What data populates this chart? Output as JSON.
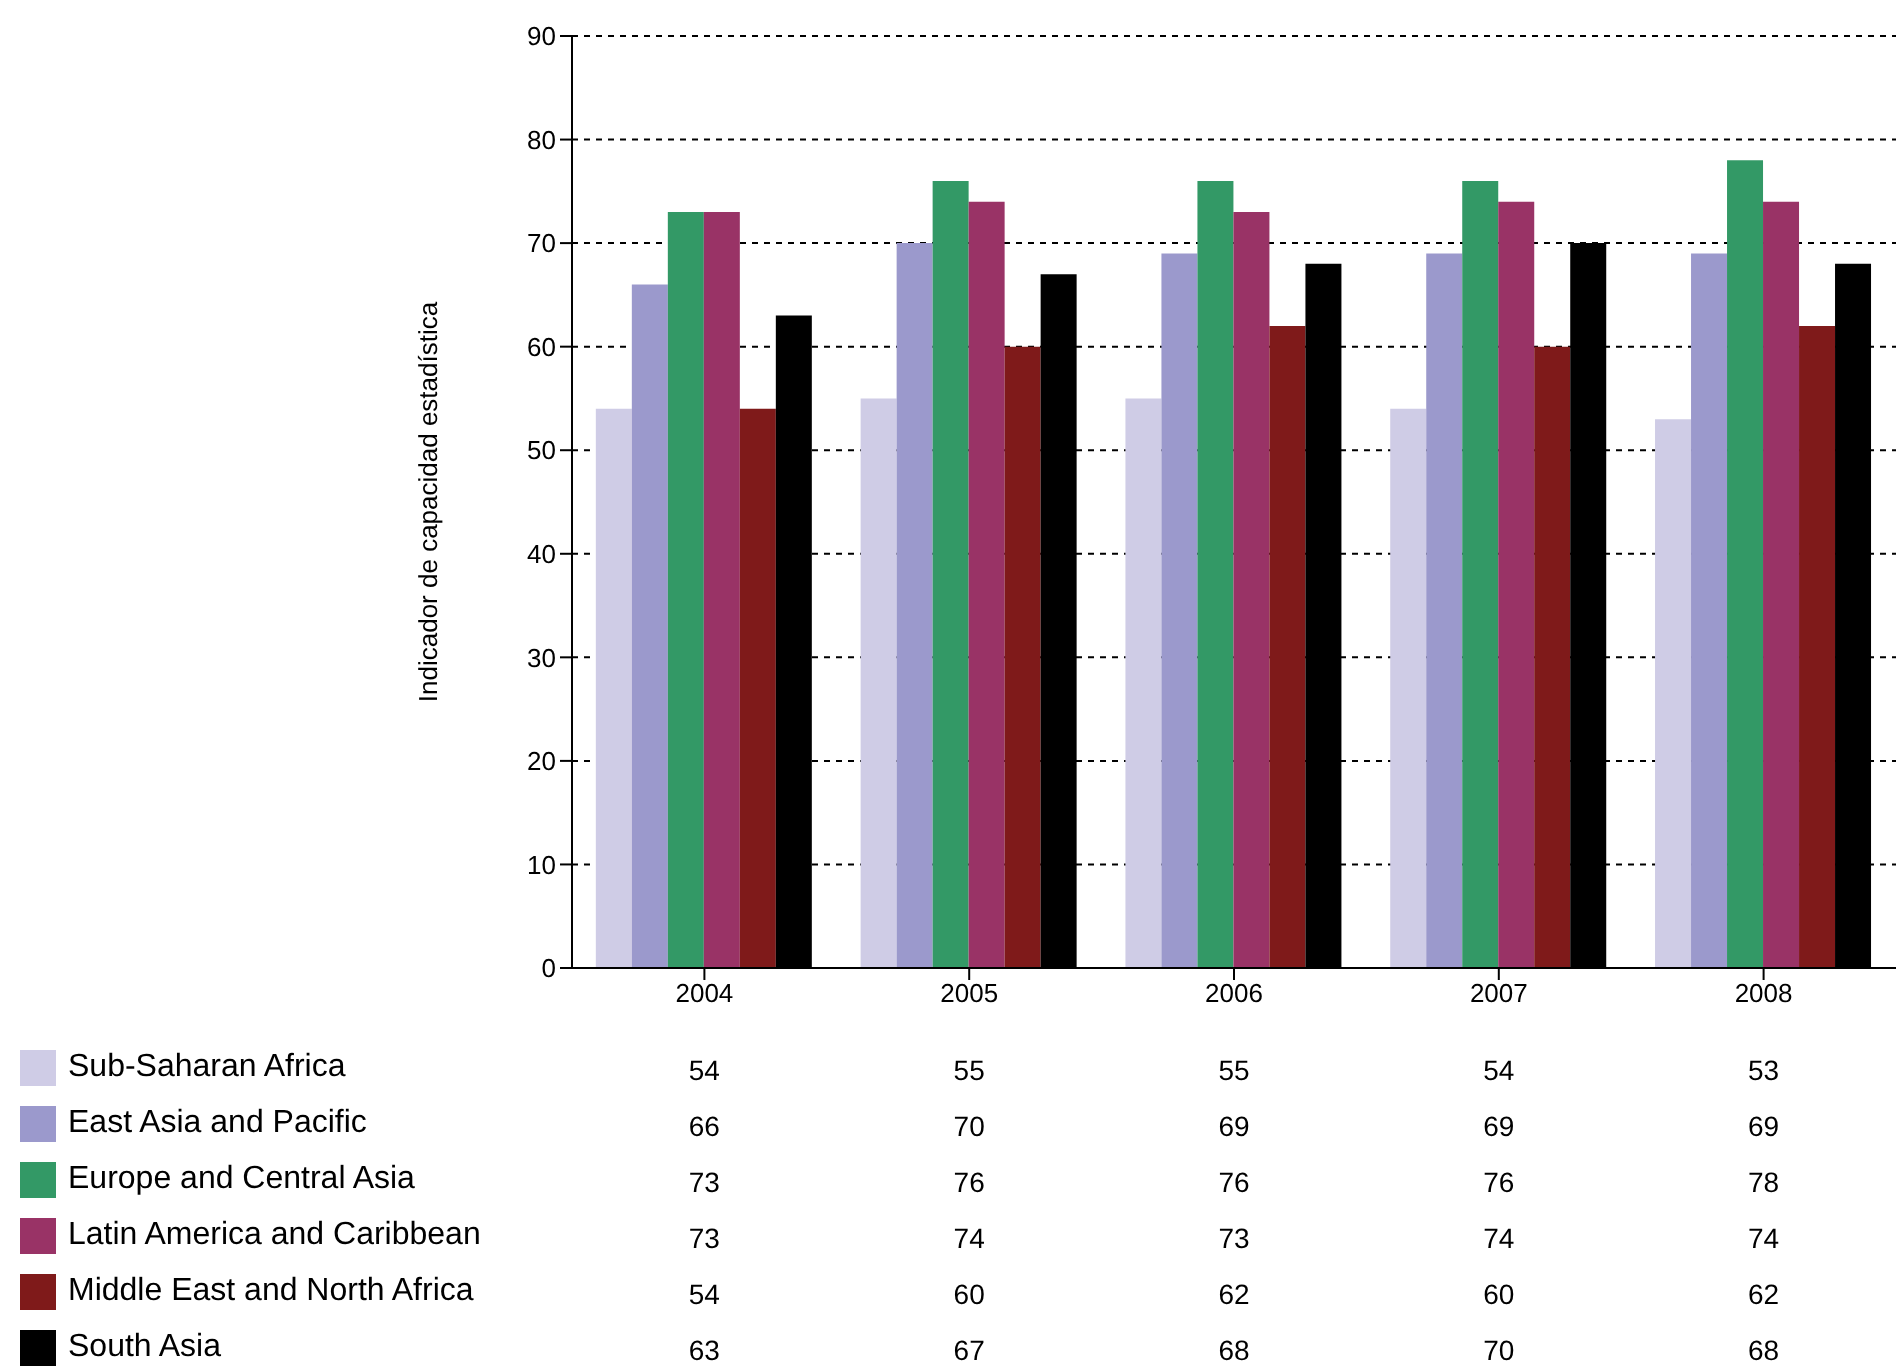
{
  "chart_data": {
    "type": "bar",
    "ylabel": "Indicador de capacidad estadística",
    "categories": [
      "2004",
      "2005",
      "2006",
      "2007",
      "2008"
    ],
    "series": [
      {
        "name": "Sub-Saharan Africa",
        "color": "#cfcce6",
        "values": [
          54,
          55,
          55,
          54,
          53
        ]
      },
      {
        "name": "East Asia and Pacific",
        "color": "#9b99cc",
        "values": [
          66,
          70,
          69,
          69,
          69
        ]
      },
      {
        "name": "Europe and Central Asia",
        "color": "#339966",
        "values": [
          73,
          76,
          76,
          76,
          78
        ]
      },
      {
        "name": "Latin America and Caribbean",
        "color": "#993366",
        "values": [
          73,
          74,
          73,
          74,
          74
        ]
      },
      {
        "name": "Middle East and North Africa",
        "color": "#7f1a1a",
        "values": [
          54,
          60,
          62,
          60,
          62
        ]
      },
      {
        "name": "South Asia",
        "color": "#000000",
        "values": [
          63,
          67,
          68,
          70,
          68
        ]
      }
    ],
    "ylim": [
      0,
      90
    ],
    "yticks": [
      0,
      10,
      20,
      30,
      40,
      50,
      60,
      70,
      80,
      90
    ],
    "grid": "y",
    "legend": "bottom",
    "data_labels": true
  }
}
